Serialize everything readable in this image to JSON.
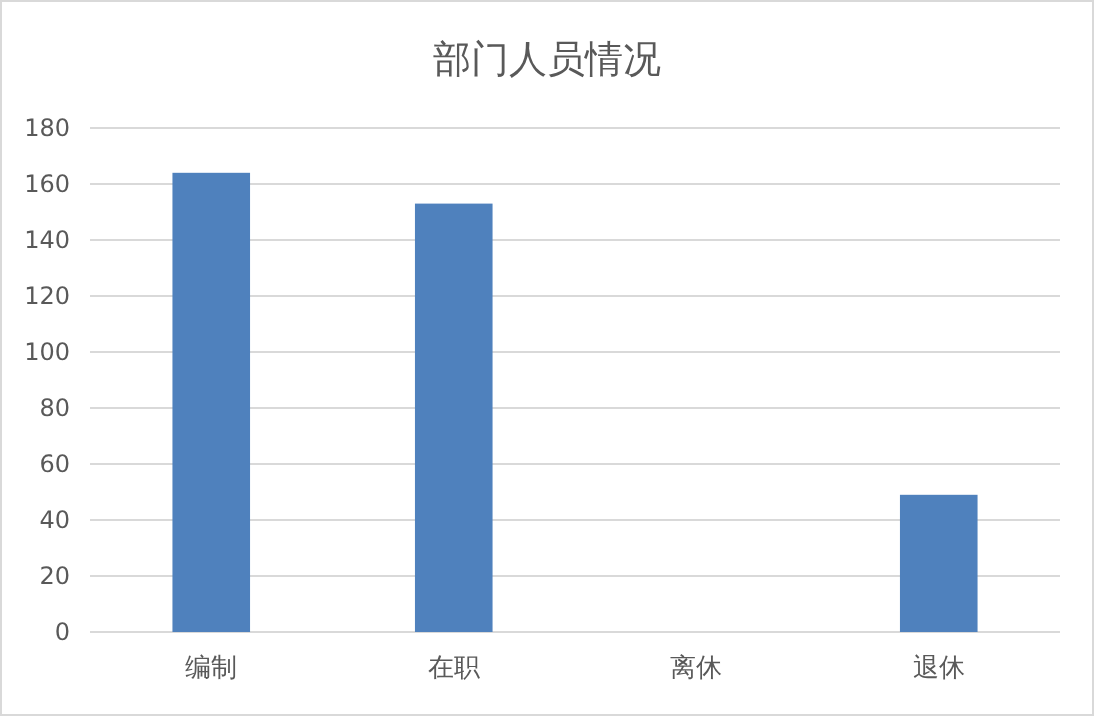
{
  "chart_data": {
    "type": "bar",
    "title": "部门人员情况",
    "categories": [
      "编制",
      "在职",
      "离休",
      "退休"
    ],
    "values": [
      164,
      153,
      0,
      49
    ],
    "color": "#4f81bd",
    "ylim": [
      0,
      180
    ],
    "yticks": [
      0,
      20,
      40,
      60,
      80,
      100,
      120,
      140,
      160,
      180
    ],
    "grid": "y",
    "legend": false
  }
}
